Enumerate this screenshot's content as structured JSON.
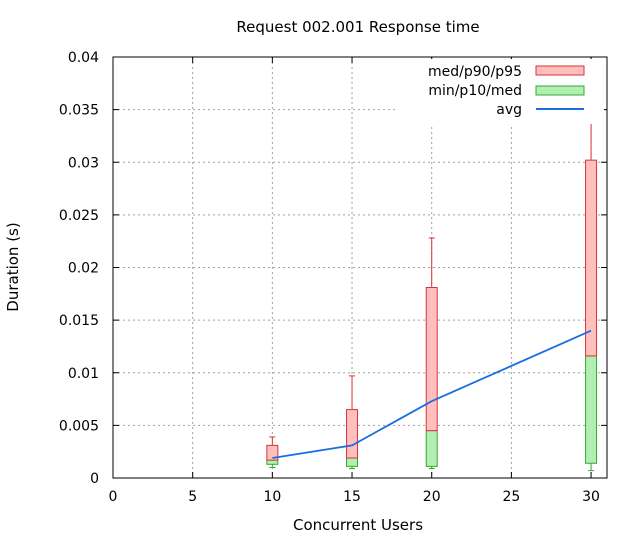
{
  "chart_data": {
    "type": "box",
    "title": "Request 002.001 Response time",
    "xlabel": "Concurrent Users",
    "ylabel": "Duration (s)",
    "xlim": [
      0,
      31
    ],
    "ylim": [
      0,
      0.04
    ],
    "x_ticks": [
      0,
      5,
      10,
      15,
      20,
      25,
      30
    ],
    "y_ticks": [
      0,
      0.005,
      0.01,
      0.015,
      0.02,
      0.025,
      0.03,
      0.035,
      0.04
    ],
    "x_tick_labels": [
      "0",
      "5",
      "10",
      "15",
      "20",
      "25",
      "30"
    ],
    "y_tick_labels": [
      "0",
      "0.005",
      "0.01",
      "0.015",
      "0.02",
      "0.025",
      "0.03",
      "0.035",
      "0.04"
    ],
    "grid": true,
    "legend_position": "top-right",
    "series": [
      {
        "name": "med/p90/p95",
        "color_fill": "#ffbfbf",
        "color_stroke": "#d93333"
      },
      {
        "name": "min/p10/med",
        "color_fill": "#b2eeb2",
        "color_stroke": "#33aa33"
      },
      {
        "name": "avg",
        "color_stroke": "#1a6ee0"
      }
    ],
    "boxes": [
      {
        "x": 10,
        "min": 0.001,
        "p10": 0.0013,
        "med": 0.0017,
        "p90": 0.0031,
        "p95": 0.0039
      },
      {
        "x": 15,
        "min": 0.0009,
        "p10": 0.0011,
        "med": 0.0019,
        "p90": 0.0065,
        "p95": 0.0097
      },
      {
        "x": 20,
        "min": 0.0009,
        "p10": 0.0011,
        "med": 0.0045,
        "p90": 0.0181,
        "p95": 0.0228
      },
      {
        "x": 30,
        "min": 0.0007,
        "p10": 0.0014,
        "med": 0.0116,
        "p90": 0.0302,
        "p95": 0.0351
      }
    ],
    "avg": [
      {
        "x": 10,
        "y": 0.0019
      },
      {
        "x": 15,
        "y": 0.0031
      },
      {
        "x": 20,
        "y": 0.0073
      },
      {
        "x": 30,
        "y": 0.014
      }
    ]
  }
}
